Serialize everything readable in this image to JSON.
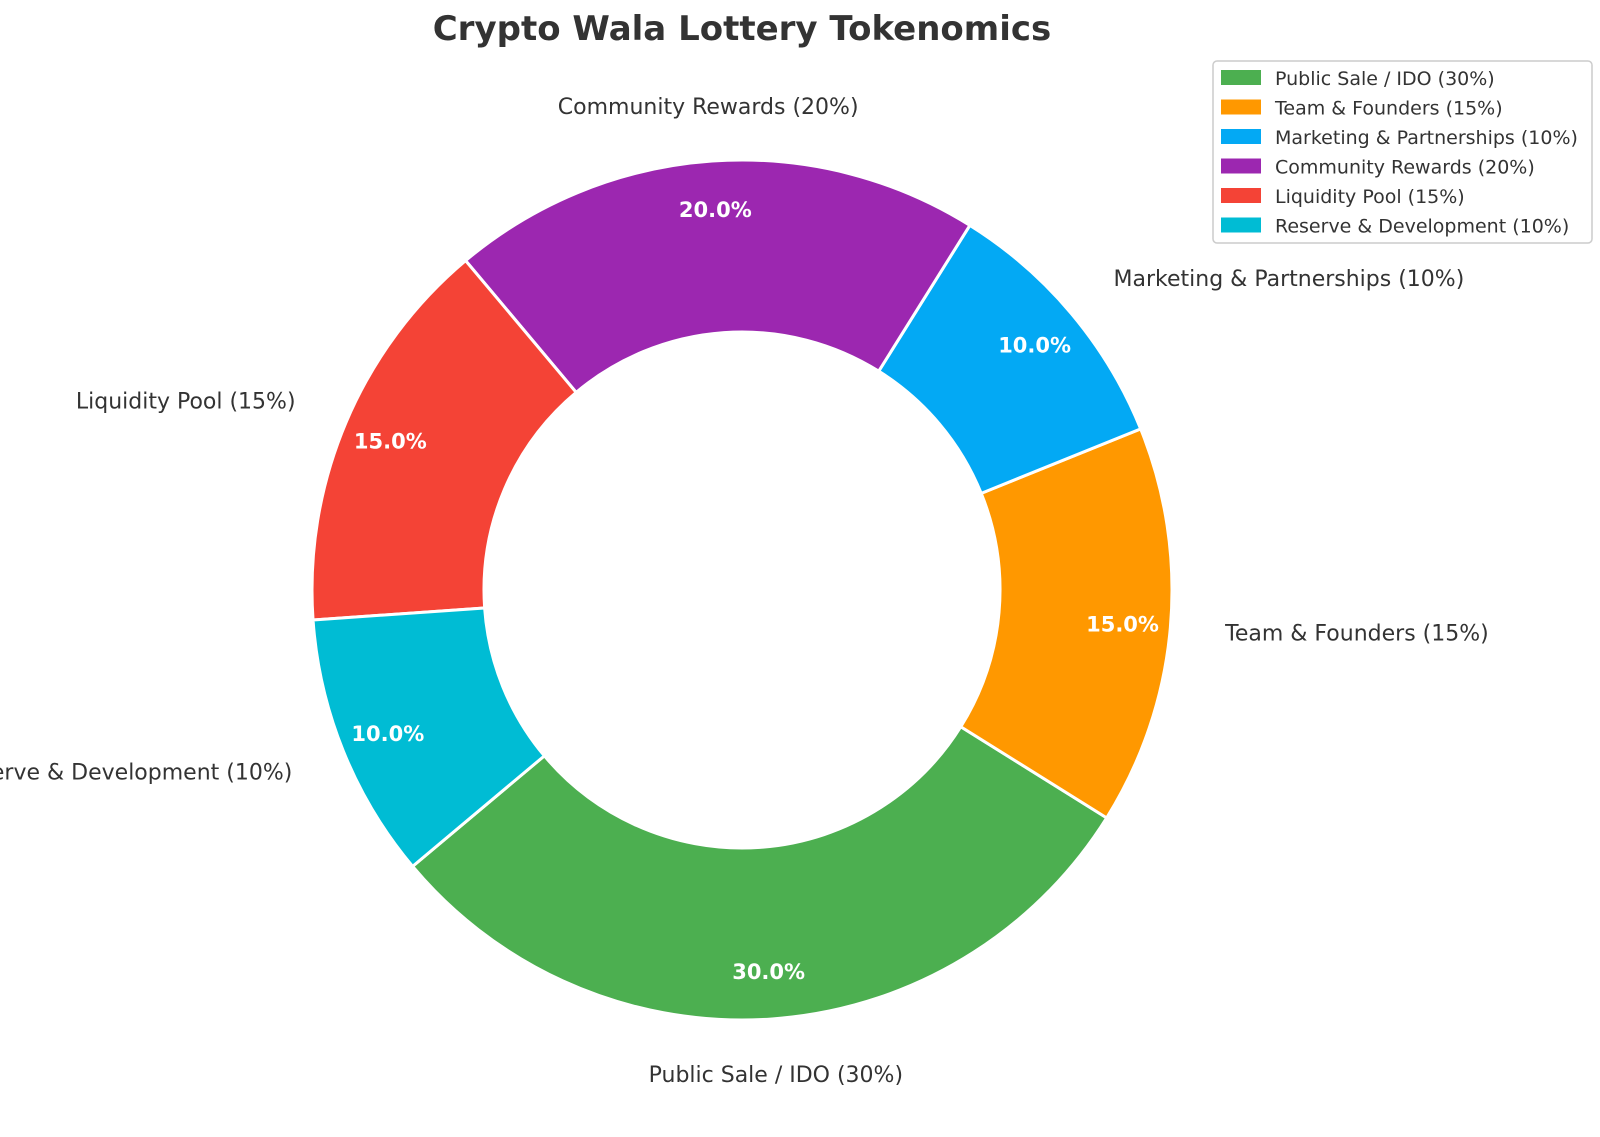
{
  "chart_data": {
    "type": "pie",
    "title": "Crypto Wala Lottery Tokenomics",
    "donut": true,
    "start_angle_deg": 220,
    "direction": "counterclockwise",
    "legend_placement": "top-right",
    "slices": [
      {
        "label": "Public Sale / IDO (30%)",
        "value": 30,
        "pct_label": "30.0%",
        "color": "#4caf50"
      },
      {
        "label": "Team & Founders (15%)",
        "value": 15,
        "pct_label": "15.0%",
        "color": "#ff9800"
      },
      {
        "label": "Marketing & Partnerships (10%)",
        "value": 10,
        "pct_label": "10.0%",
        "color": "#03a9f4"
      },
      {
        "label": "Community Rewards (20%)",
        "value": 20,
        "pct_label": "20.0%",
        "color": "#9c27b0"
      },
      {
        "label": "Liquidity Pool (15%)",
        "value": 15,
        "pct_label": "15.0%",
        "color": "#f44336"
      },
      {
        "label": "Reserve & Development (10%)",
        "value": 10,
        "pct_label": "10.0%",
        "color": "#00bcd4"
      }
    ],
    "legend": [
      "Public Sale / IDO (30%)",
      "Team & Founders (15%)",
      "Marketing & Partnerships (10%)",
      "Community Rewards (20%)",
      "Liquidity Pool (15%)",
      "Reserve & Development (10%)"
    ]
  }
}
